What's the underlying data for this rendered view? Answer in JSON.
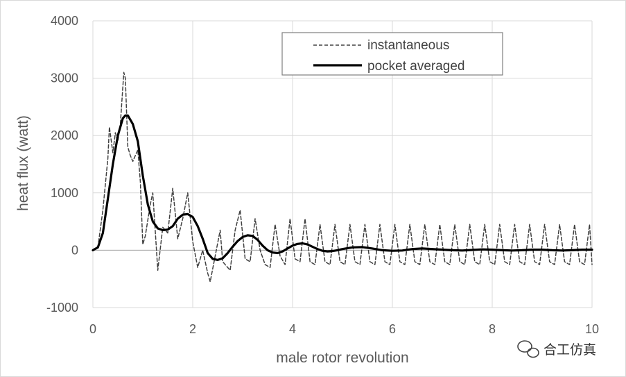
{
  "chart_data": {
    "type": "line",
    "title": "",
    "xlabel": "male rotor revolution",
    "ylabel": "heat flux  (watt)",
    "xlim": [
      0,
      10
    ],
    "ylim": [
      -1000,
      4000
    ],
    "x_ticks": [
      "0",
      "2",
      "4",
      "6",
      "8",
      "10"
    ],
    "y_ticks": [
      "-1000",
      "0",
      "1000",
      "2000",
      "3000",
      "4000"
    ],
    "grid": "vertical and horizontal major gridlines",
    "legend_position": "top-right",
    "series": [
      {
        "name": "instantaneous",
        "style": "dashed",
        "color": "#404040",
        "points": [
          [
            0,
            0
          ],
          [
            0.1,
            50
          ],
          [
            0.2,
            700
          ],
          [
            0.3,
            1600
          ],
          [
            0.33,
            2150
          ],
          [
            0.4,
            1700
          ],
          [
            0.45,
            2050
          ],
          [
            0.5,
            1900
          ],
          [
            0.55,
            2200
          ],
          [
            0.62,
            3100
          ],
          [
            0.65,
            3000
          ],
          [
            0.7,
            1800
          ],
          [
            0.75,
            1650
          ],
          [
            0.8,
            1550
          ],
          [
            0.9,
            1750
          ],
          [
            0.95,
            1200
          ],
          [
            1.0,
            100
          ],
          [
            1.05,
            250
          ],
          [
            1.15,
            800
          ],
          [
            1.2,
            1000
          ],
          [
            1.3,
            -350
          ],
          [
            1.4,
            400
          ],
          [
            1.5,
            300
          ],
          [
            1.6,
            1080
          ],
          [
            1.7,
            200
          ],
          [
            1.8,
            550
          ],
          [
            1.9,
            1000
          ],
          [
            2.0,
            150
          ],
          [
            2.1,
            -300
          ],
          [
            2.2,
            0
          ],
          [
            2.3,
            -400
          ],
          [
            2.35,
            -550
          ],
          [
            2.45,
            -100
          ],
          [
            2.55,
            350
          ],
          [
            2.6,
            -200
          ],
          [
            2.75,
            -350
          ],
          [
            2.85,
            350
          ],
          [
            2.95,
            700
          ],
          [
            3.05,
            -150
          ],
          [
            3.15,
            -200
          ],
          [
            3.25,
            550
          ],
          [
            3.35,
            0
          ],
          [
            3.45,
            -250
          ],
          [
            3.55,
            -300
          ],
          [
            3.65,
            450
          ],
          [
            3.75,
            -100
          ],
          [
            3.85,
            -250
          ],
          [
            3.95,
            550
          ],
          [
            4.05,
            -150
          ],
          [
            4.15,
            -200
          ],
          [
            4.25,
            550
          ],
          [
            4.35,
            -200
          ],
          [
            4.45,
            -250
          ],
          [
            4.55,
            450
          ],
          [
            4.65,
            -200
          ],
          [
            4.75,
            -250
          ],
          [
            4.85,
            450
          ],
          [
            4.95,
            -200
          ],
          [
            5.05,
            -250
          ],
          [
            5.15,
            450
          ],
          [
            5.25,
            -200
          ],
          [
            5.35,
            -250
          ],
          [
            5.45,
            450
          ],
          [
            5.55,
            -200
          ],
          [
            5.65,
            -250
          ],
          [
            5.75,
            450
          ],
          [
            5.85,
            -200
          ],
          [
            5.95,
            -250
          ],
          [
            6.05,
            450
          ],
          [
            6.15,
            -200
          ],
          [
            6.25,
            -250
          ],
          [
            6.35,
            450
          ],
          [
            6.45,
            -200
          ],
          [
            6.55,
            -250
          ],
          [
            6.65,
            450
          ],
          [
            6.75,
            -200
          ],
          [
            6.85,
            -250
          ],
          [
            6.95,
            450
          ],
          [
            7.05,
            -200
          ],
          [
            7.15,
            -250
          ],
          [
            7.25,
            450
          ],
          [
            7.35,
            -200
          ],
          [
            7.45,
            -250
          ],
          [
            7.55,
            450
          ],
          [
            7.65,
            -200
          ],
          [
            7.75,
            -250
          ],
          [
            7.85,
            450
          ],
          [
            7.95,
            -200
          ],
          [
            8.05,
            -250
          ],
          [
            8.15,
            450
          ],
          [
            8.25,
            -200
          ],
          [
            8.35,
            -250
          ],
          [
            8.45,
            450
          ],
          [
            8.55,
            -200
          ],
          [
            8.65,
            -250
          ],
          [
            8.75,
            450
          ],
          [
            8.85,
            -200
          ],
          [
            8.95,
            -250
          ],
          [
            9.05,
            450
          ],
          [
            9.15,
            -200
          ],
          [
            9.25,
            -250
          ],
          [
            9.35,
            450
          ],
          [
            9.45,
            -200
          ],
          [
            9.55,
            -250
          ],
          [
            9.65,
            450
          ],
          [
            9.75,
            -200
          ],
          [
            9.85,
            -250
          ],
          [
            9.95,
            450
          ],
          [
            10.0,
            -250
          ]
        ]
      },
      {
        "name": "pocket averaged",
        "style": "solid",
        "color": "#000000",
        "points": [
          [
            0,
            0
          ],
          [
            0.1,
            50
          ],
          [
            0.2,
            300
          ],
          [
            0.3,
            900
          ],
          [
            0.4,
            1500
          ],
          [
            0.5,
            2000
          ],
          [
            0.6,
            2300
          ],
          [
            0.65,
            2350
          ],
          [
            0.7,
            2350
          ],
          [
            0.8,
            2200
          ],
          [
            0.9,
            1900
          ],
          [
            1.0,
            1300
          ],
          [
            1.1,
            800
          ],
          [
            1.2,
            500
          ],
          [
            1.3,
            380
          ],
          [
            1.4,
            350
          ],
          [
            1.5,
            360
          ],
          [
            1.6,
            420
          ],
          [
            1.7,
            550
          ],
          [
            1.8,
            620
          ],
          [
            1.9,
            630
          ],
          [
            2.0,
            580
          ],
          [
            2.1,
            420
          ],
          [
            2.2,
            200
          ],
          [
            2.3,
            -50
          ],
          [
            2.4,
            -150
          ],
          [
            2.5,
            -170
          ],
          [
            2.6,
            -140
          ],
          [
            2.7,
            -50
          ],
          [
            2.8,
            60
          ],
          [
            2.9,
            160
          ],
          [
            3.0,
            230
          ],
          [
            3.1,
            260
          ],
          [
            3.2,
            250
          ],
          [
            3.3,
            180
          ],
          [
            3.4,
            80
          ],
          [
            3.5,
            0
          ],
          [
            3.6,
            -40
          ],
          [
            3.7,
            -50
          ],
          [
            3.8,
            -20
          ],
          [
            3.9,
            30
          ],
          [
            4.0,
            80
          ],
          [
            4.1,
            110
          ],
          [
            4.2,
            120
          ],
          [
            4.3,
            100
          ],
          [
            4.4,
            60
          ],
          [
            4.5,
            20
          ],
          [
            4.6,
            -10
          ],
          [
            4.7,
            -20
          ],
          [
            4.8,
            -15
          ],
          [
            4.9,
            0
          ],
          [
            5.0,
            20
          ],
          [
            5.2,
            50
          ],
          [
            5.4,
            55
          ],
          [
            5.6,
            30
          ],
          [
            5.8,
            0
          ],
          [
            6.0,
            -10
          ],
          [
            6.2,
            -5
          ],
          [
            6.4,
            20
          ],
          [
            6.6,
            30
          ],
          [
            6.8,
            20
          ],
          [
            7.0,
            10
          ],
          [
            7.2,
            0
          ],
          [
            7.4,
            -5
          ],
          [
            7.6,
            5
          ],
          [
            7.8,
            15
          ],
          [
            8.0,
            10
          ],
          [
            8.2,
            0
          ],
          [
            8.4,
            -5
          ],
          [
            8.6,
            0
          ],
          [
            8.8,
            10
          ],
          [
            9.0,
            10
          ],
          [
            9.2,
            0
          ],
          [
            9.4,
            -5
          ],
          [
            9.6,
            0
          ],
          [
            9.8,
            10
          ],
          [
            10.0,
            10
          ]
        ]
      }
    ]
  },
  "watermark": {
    "text": "合工仿真",
    "icon": "wechat-icon"
  },
  "colors": {
    "grid": "#d9d9d9",
    "axis": "#a6a6a6",
    "tick_text": "#595959"
  }
}
